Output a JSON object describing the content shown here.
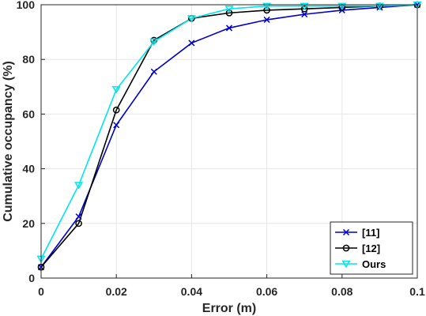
{
  "chart_data": {
    "type": "line",
    "xlabel": "Error (m)",
    "ylabel": "Cumulative occupancy (%)",
    "xlim": [
      0,
      0.1
    ],
    "ylim": [
      0,
      100
    ],
    "xticks": [
      "0",
      "0.02",
      "0.04",
      "0.06",
      "0.08",
      "0.1"
    ],
    "yticks": [
      "0",
      "20",
      "40",
      "60",
      "80",
      "100"
    ],
    "grid": true,
    "legend_position": "bottom-right",
    "x": [
      0,
      0.01,
      0.02,
      0.03,
      0.04,
      0.05,
      0.06,
      0.07,
      0.08,
      0.09,
      0.1
    ],
    "series": [
      {
        "name": "[11]",
        "color": "#0000cc",
        "marker": "x",
        "values": [
          4,
          22.5,
          56,
          75.5,
          86,
          91.5,
          94.5,
          96.5,
          98,
          99,
          100
        ]
      },
      {
        "name": "[12]",
        "color": "#000000",
        "marker": "circle",
        "values": [
          4,
          20,
          61.5,
          87,
          95,
          97,
          98,
          98.5,
          99,
          99.5,
          100
        ]
      },
      {
        "name": "Ours",
        "color": "#00e5ee",
        "marker": "triangle-down",
        "values": [
          7,
          34,
          69,
          86.5,
          95,
          98.5,
          99.5,
          99.5,
          99.5,
          99.5,
          100
        ]
      }
    ]
  }
}
